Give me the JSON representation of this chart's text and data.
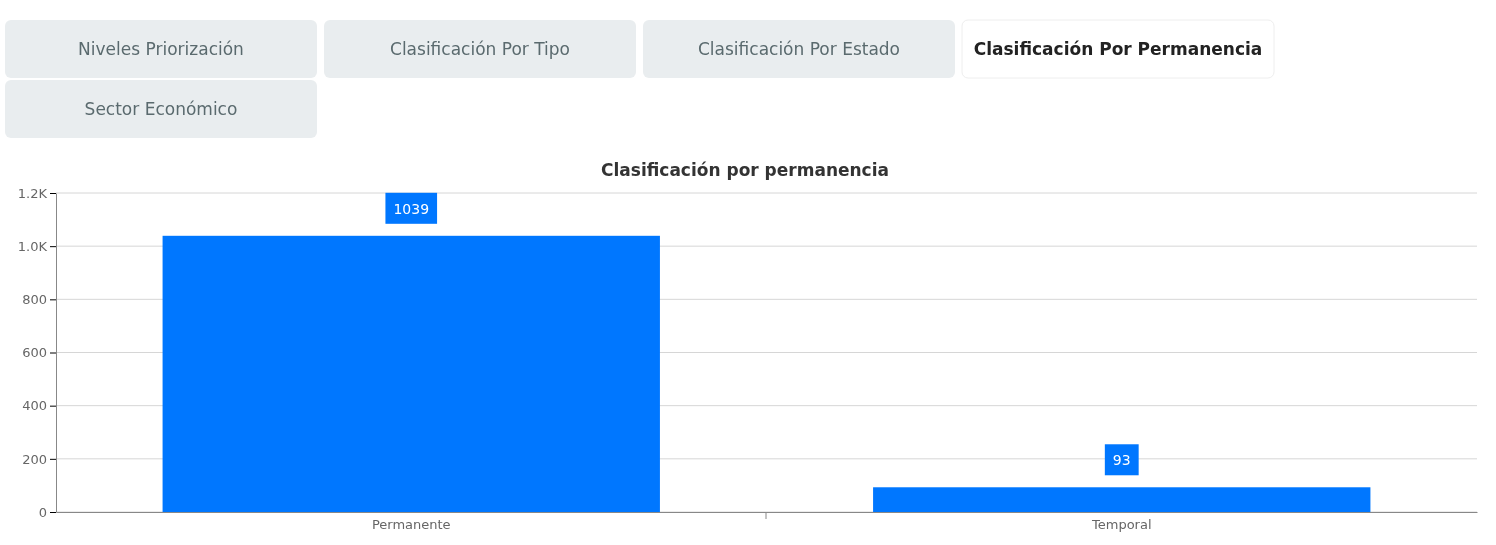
{
  "chart_data": {
    "type": "bar",
    "title": "Clasificación por permanencia",
    "categories": [
      "Permanente",
      "Temporal"
    ],
    "values": [
      1039,
      93
    ],
    "color": "#0077ff",
    "ylim": [
      0,
      1200
    ],
    "yticks": [
      0,
      200,
      400,
      600,
      800,
      {
        "value": 1000,
        "label": "1.0K"
      },
      {
        "value": 1200,
        "label": "1.2K"
      }
    ],
    "grid": "y",
    "data_labels": true,
    "annotations": [
      "Niveles Priorización",
      "Clasificación Por Tipo",
      "Clasificación Por Estado",
      "Clasificación Por Permanencia",
      "Sector Económico"
    ]
  }
}
